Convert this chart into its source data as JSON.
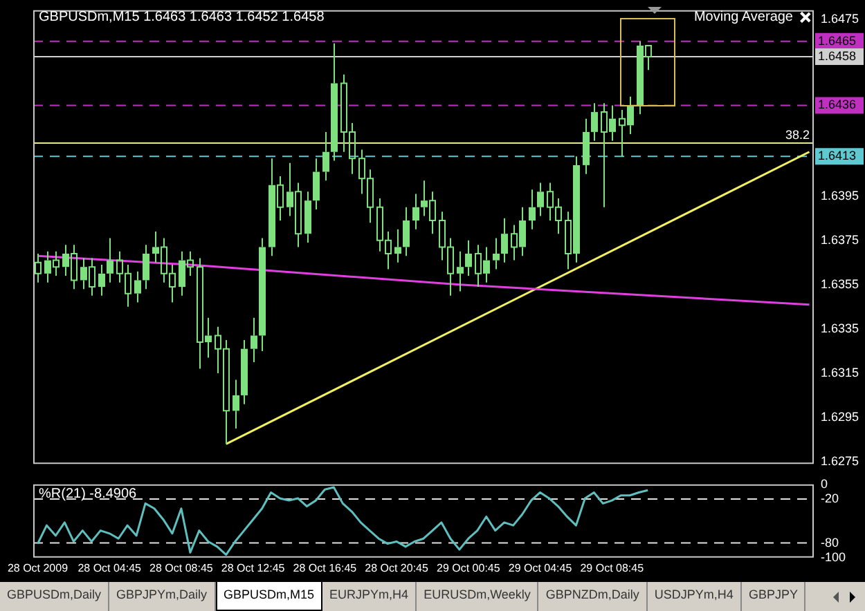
{
  "chart_data": [
    {
      "type": "candlestick",
      "title": "GBPUSDm,M15  1.6463 1.6463 1.6452 1.6458",
      "color": "#7ee07e",
      "categories": [
        null,
        null,
        null,
        null,
        null,
        null,
        null,
        null,
        null,
        null,
        null,
        null,
        null,
        null,
        null,
        null,
        null,
        null,
        null,
        null,
        null,
        null,
        null,
        null,
        null,
        null,
        null,
        null,
        null,
        null,
        null,
        null,
        null,
        null,
        null,
        null,
        null,
        null,
        null,
        null,
        null,
        null,
        null,
        null,
        null,
        null,
        null,
        null,
        null,
        null,
        null,
        null,
        null,
        null,
        null,
        null,
        null,
        null,
        null,
        null,
        null,
        null,
        null,
        null,
        null,
        null,
        null,
        null,
        null,
        null,
        null,
        null,
        null,
        null,
        null,
        null,
        null,
        null,
        null,
        null,
        null,
        null,
        null,
        null,
        null,
        null,
        null
      ],
      "ohlc": [
        [
          1.6365,
          1.6369,
          1.6356,
          1.636
        ],
        [
          1.636,
          1.637,
          1.6356,
          1.6366
        ],
        [
          1.6366,
          1.637,
          1.6359,
          1.6363
        ],
        [
          1.6363,
          1.6373,
          1.6359,
          1.6369
        ],
        [
          1.6369,
          1.6373,
          1.6353,
          1.6357
        ],
        [
          1.6357,
          1.6367,
          1.6353,
          1.6363
        ],
        [
          1.6363,
          1.6367,
          1.635,
          1.6354
        ],
        [
          1.6354,
          1.6364,
          1.635,
          1.636
        ],
        [
          1.636,
          1.6376,
          1.6356,
          1.6366
        ],
        [
          1.6366,
          1.637,
          1.6356,
          1.636
        ],
        [
          1.636,
          1.6364,
          1.6345,
          1.6351
        ],
        [
          1.6351,
          1.6361,
          1.6347,
          1.6357
        ],
        [
          1.6357,
          1.6373,
          1.6353,
          1.6369
        ],
        [
          1.6369,
          1.6379,
          1.6365,
          1.6372
        ],
        [
          1.6372,
          1.6376,
          1.6356,
          1.636
        ],
        [
          1.636,
          1.6364,
          1.6347,
          1.6354
        ],
        [
          1.6354,
          1.637,
          1.635,
          1.6366
        ],
        [
          1.6366,
          1.637,
          1.6359,
          1.6363
        ],
        [
          1.6363,
          1.6367,
          1.6317,
          1.6329
        ],
        [
          1.6329,
          1.634,
          1.6322,
          1.6332
        ],
        [
          1.6332,
          1.6336,
          1.6315,
          1.6326
        ],
        [
          1.6326,
          1.633,
          1.6283,
          1.6298
        ],
        [
          1.6298,
          1.6312,
          1.629,
          1.6305
        ],
        [
          1.6305,
          1.633,
          1.6301,
          1.6326
        ],
        [
          1.6326,
          1.634,
          1.632,
          1.6332
        ],
        [
          1.6332,
          1.6376,
          1.6325,
          1.6372
        ],
        [
          1.6372,
          1.6412,
          1.6368,
          1.64
        ],
        [
          1.64,
          1.6404,
          1.6384,
          1.639
        ],
        [
          1.639,
          1.641,
          1.6386,
          1.6397
        ],
        [
          1.6397,
          1.6401,
          1.6372,
          1.6378
        ],
        [
          1.6378,
          1.6397,
          1.6374,
          1.6393
        ],
        [
          1.6393,
          1.6412,
          1.6389,
          1.6406
        ],
        [
          1.6406,
          1.6424,
          1.6402,
          1.6415
        ],
        [
          1.6415,
          1.6464,
          1.6411,
          1.6446
        ],
        [
          1.6446,
          1.645,
          1.6415,
          1.6424
        ],
        [
          1.6424,
          1.6428,
          1.6405,
          1.6412
        ],
        [
          1.6412,
          1.6416,
          1.6396,
          1.6403
        ],
        [
          1.6403,
          1.6407,
          1.6383,
          1.639
        ],
        [
          1.639,
          1.6394,
          1.637,
          1.6375
        ],
        [
          1.6375,
          1.6379,
          1.6362,
          1.6369
        ],
        [
          1.6369,
          1.638,
          1.6365,
          1.6372
        ],
        [
          1.6372,
          1.639,
          1.6368,
          1.6384
        ],
        [
          1.6384,
          1.6396,
          1.638,
          1.639
        ],
        [
          1.639,
          1.6402,
          1.6386,
          1.6393
        ],
        [
          1.6393,
          1.6397,
          1.6378,
          1.6384
        ],
        [
          1.6384,
          1.6388,
          1.6366,
          1.6372
        ],
        [
          1.6372,
          1.6376,
          1.635,
          1.636
        ],
        [
          1.636,
          1.637,
          1.6352,
          1.6363
        ],
        [
          1.6363,
          1.6375,
          1.6359,
          1.6369
        ],
        [
          1.6369,
          1.6373,
          1.6354,
          1.636
        ],
        [
          1.636,
          1.6372,
          1.6356,
          1.6366
        ],
        [
          1.6366,
          1.6376,
          1.6362,
          1.6369
        ],
        [
          1.6369,
          1.6385,
          1.6365,
          1.6378
        ],
        [
          1.6378,
          1.6382,
          1.6366,
          1.6372
        ],
        [
          1.6372,
          1.639,
          1.6368,
          1.6384
        ],
        [
          1.6384,
          1.6398,
          1.638,
          1.639
        ],
        [
          1.639,
          1.6401,
          1.6386,
          1.6397
        ],
        [
          1.6397,
          1.6401,
          1.6384,
          1.639
        ],
        [
          1.639,
          1.6394,
          1.6378,
          1.6384
        ],
        [
          1.6384,
          1.6388,
          1.6362,
          1.6369
        ],
        [
          1.6369,
          1.6413,
          1.6365,
          1.6409
        ],
        [
          1.6409,
          1.643,
          1.6405,
          1.6424
        ],
        [
          1.6424,
          1.6437,
          1.642,
          1.6433
        ],
        [
          1.6433,
          1.6437,
          1.639,
          1.6424
        ],
        [
          1.6424,
          1.6436,
          1.642,
          1.643
        ],
        [
          1.643,
          1.6434,
          1.6413,
          1.6427
        ],
        [
          1.6427,
          1.644,
          1.6423,
          1.6436
        ],
        [
          1.6436,
          1.6465,
          1.6432,
          1.6463
        ],
        [
          1.6463,
          1.6463,
          1.6452,
          1.6458
        ],
        null,
        null,
        null,
        null,
        null,
        null,
        null,
        null,
        null,
        null,
        null,
        null,
        null,
        null,
        null,
        null,
        null,
        null
      ],
      "series": [
        {
          "type": "line",
          "color": "#e040e0",
          "values": [
            1.6368,
            null,
            null,
            null,
            null,
            null,
            null,
            null,
            null,
            null,
            null,
            null,
            null,
            null,
            null,
            null,
            null,
            1.6364,
            null,
            null,
            null,
            null,
            null,
            null,
            null,
            null,
            null,
            null,
            null,
            null,
            null,
            null,
            null,
            null,
            null,
            null,
            null,
            null,
            null,
            null,
            null,
            null,
            null,
            null,
            null,
            null,
            null,
            1.6355,
            null,
            null,
            null,
            null,
            null,
            null,
            null,
            null,
            null,
            null,
            null,
            null,
            null,
            null,
            null,
            null,
            null,
            null,
            null,
            null,
            null,
            null,
            null,
            null,
            null,
            null,
            null,
            null,
            null,
            null,
            null,
            null,
            null,
            null,
            null,
            null,
            null,
            null,
            1.6346
          ]
        },
        {
          "type": "line",
          "color": "#f0f060",
          "values": [
            null,
            null,
            null,
            null,
            null,
            null,
            null,
            null,
            null,
            null,
            null,
            null,
            null,
            null,
            null,
            null,
            null,
            null,
            null,
            null,
            null,
            1.6283,
            null,
            null,
            null,
            null,
            null,
            null,
            null,
            null,
            null,
            null,
            null,
            null,
            null,
            null,
            null,
            null,
            null,
            null,
            null,
            null,
            null,
            null,
            null,
            null,
            null,
            null,
            null,
            null,
            null,
            null,
            null,
            null,
            null,
            null,
            null,
            null,
            null,
            null,
            null,
            null,
            null,
            null,
            null,
            null,
            null,
            null,
            null,
            null,
            null,
            null,
            null,
            null,
            null,
            null,
            null,
            null,
            null,
            null,
            null,
            null,
            null,
            null,
            null,
            null,
            1.6415
          ]
        }
      ],
      "ylim": [
        1.6274,
        1.6479
      ],
      "yticks": [
        1.6275,
        1.6295,
        1.6315,
        1.6335,
        1.6355,
        1.6375,
        1.6395,
        1.6475
      ],
      "tick_labels": "y",
      "ref_lines": [
        {
          "axis": "y",
          "value": 1.6465,
          "label": "1.6465",
          "color": "#c030c0",
          "line_style": "dashed"
        },
        {
          "axis": "y",
          "value": 1.6458,
          "label": "1.6458",
          "color": "#d0d0d0",
          "line_style": "solid"
        },
        {
          "axis": "y",
          "value": 1.6436,
          "label": "1.6436",
          "color": "#c030c0",
          "line_style": "dashed"
        },
        {
          "axis": "y",
          "value": 1.6419,
          "color": "#e8e890",
          "line_style": "solid"
        },
        {
          "axis": "y",
          "value": 1.6413,
          "label": "1.6413",
          "color": "#60c8d0",
          "line_style": "dashed"
        }
      ],
      "annotations": [
        "Moving Average",
        {
          "text": "38.2",
          "y": 1.6419
        }
      ]
    },
    {
      "type": "line",
      "title": "%R(21) -8.4906",
      "color": "#5fbfbf",
      "categories": [
        "28 Oct 2009",
        null,
        null,
        null,
        null,
        null,
        null,
        null,
        "28 Oct 04:45",
        null,
        null,
        null,
        null,
        null,
        null,
        null,
        "28 Oct 08:45",
        null,
        null,
        null,
        null,
        null,
        null,
        null,
        "28 Oct 12:45",
        null,
        null,
        null,
        null,
        null,
        null,
        null,
        "28 Oct 16:45",
        null,
        null,
        null,
        null,
        null,
        null,
        null,
        "28 Oct 20:45",
        null,
        null,
        null,
        null,
        null,
        null,
        null,
        "29 Oct 00:45",
        null,
        null,
        null,
        null,
        null,
        null,
        null,
        "29 Oct 04:45",
        null,
        null,
        null,
        null,
        null,
        null,
        null,
        "29 Oct 08:45",
        null,
        null,
        null,
        null,
        null,
        null,
        null,
        null,
        null,
        null,
        null,
        null,
        null,
        null,
        null,
        null,
        null,
        null,
        null,
        null,
        null,
        null
      ],
      "values": [
        -81,
        -56,
        -70,
        -52,
        -78,
        -63,
        -78,
        -63,
        -67,
        -74,
        -56,
        -70,
        -26,
        -33,
        -48,
        -67,
        -33,
        -93,
        -63,
        -78,
        -85,
        -96,
        -78,
        -63,
        -48,
        -33,
        -11,
        -19,
        -22,
        -19,
        -30,
        -22,
        -7,
        -4,
        -26,
        -37,
        -52,
        -63,
        -74,
        -81,
        -78,
        -85,
        -78,
        -74,
        -63,
        -52,
        -74,
        -89,
        -74,
        -63,
        -44,
        -63,
        -52,
        -56,
        -41,
        -22,
        -11,
        -19,
        -30,
        -44,
        -56,
        -19,
        -11,
        -26,
        -22,
        -15,
        -15,
        -11,
        -8,
        null,
        null,
        null,
        null,
        null,
        null,
        null,
        null,
        null,
        null,
        null,
        null,
        null,
        null,
        null,
        null,
        null,
        null
      ],
      "ylim": [
        -100,
        0
      ],
      "yticks": [
        0,
        -20,
        -80,
        -100
      ],
      "ref_lines": [
        {
          "axis": "y",
          "value": -20,
          "color": "#e0e0e0",
          "line_style": "dashed"
        },
        {
          "axis": "y",
          "value": -80,
          "color": "#e0e0e0",
          "line_style": "dashed"
        }
      ],
      "annotations": [
        "GBPUSDm,Daily",
        "GBPJPYm,Daily",
        "GBPUSDm,M15",
        "EURJPYm,H4",
        "EURUSDm,Weekly",
        "GBPNZDm,Daily",
        "USDJPYm,H4",
        "GBPJPY"
      ]
    }
  ]
}
